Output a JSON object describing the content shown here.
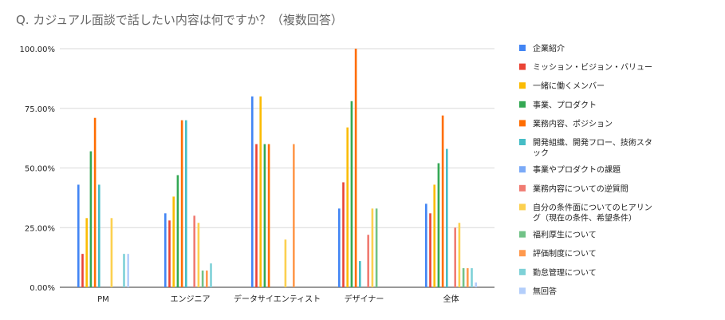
{
  "chart_data": {
    "type": "bar",
    "title": "Q. カジュアル面談で話したい内容は何ですか？（複数回答）",
    "xlabel": "",
    "ylabel": "",
    "ylim": [
      0,
      1
    ],
    "y_ticks": [
      "0.00%",
      "25.00%",
      "50.00%",
      "75.00%",
      "100.00%"
    ],
    "y_tick_values": [
      0,
      0.25,
      0.5,
      0.75,
      1.0
    ],
    "grid": true,
    "legend_position": "right",
    "categories": [
      "PM",
      "エンジニア",
      "データサイエンティスト",
      "デザイナー",
      "全体"
    ],
    "series": [
      {
        "name": "企業紹介",
        "color": "#4285f4",
        "values": [
          0.43,
          0.31,
          0.8,
          0.33,
          0.35
        ]
      },
      {
        "name": "ミッション・ビジョン・バリュー",
        "color": "#ea4335",
        "values": [
          0.14,
          0.28,
          0.6,
          0.44,
          0.31
        ]
      },
      {
        "name": "一緒に働くメンバー",
        "color": "#fbbc04",
        "values": [
          0.29,
          0.38,
          0.8,
          0.67,
          0.43
        ]
      },
      {
        "name": "事業、プロダクト",
        "color": "#34a853",
        "values": [
          0.57,
          0.47,
          0.6,
          0.78,
          0.52
        ]
      },
      {
        "name": "業務内容、ポジション",
        "color": "#ff6d01",
        "values": [
          0.71,
          0.7,
          0.6,
          1.0,
          0.72
        ]
      },
      {
        "name": "開発組織、開発フロー、技術スタック",
        "color": "#46bdc6",
        "values": [
          0.43,
          0.7,
          0,
          0.11,
          0.58
        ]
      },
      {
        "name": "事業やプロダクトの課題",
        "color": "#7baaf7",
        "values": [
          0,
          0,
          0,
          0,
          0
        ]
      },
      {
        "name": "業務内容についての逆質問",
        "color": "#f07b72",
        "values": [
          0,
          0.3,
          0,
          0.22,
          0.25
        ]
      },
      {
        "name": "自分の条件面についてのヒアリング（現在の条件、希望条件）",
        "color": "#fcd04f",
        "values": [
          0.29,
          0.27,
          0.2,
          0.33,
          0.27
        ]
      },
      {
        "name": "福利厚生について",
        "color": "#71c287",
        "values": [
          0,
          0.07,
          0,
          0.33,
          0.08
        ]
      },
      {
        "name": "評価制度について",
        "color": "#ff994d",
        "values": [
          0,
          0.07,
          0.6,
          0,
          0.08
        ]
      },
      {
        "name": "勤怠管理について",
        "color": "#7ed1d7",
        "values": [
          0.14,
          0.1,
          0,
          0,
          0.08
        ]
      },
      {
        "name": "無回答",
        "color": "#b3cefb",
        "values": [
          0.14,
          0,
          0,
          0,
          0.02
        ]
      }
    ]
  }
}
